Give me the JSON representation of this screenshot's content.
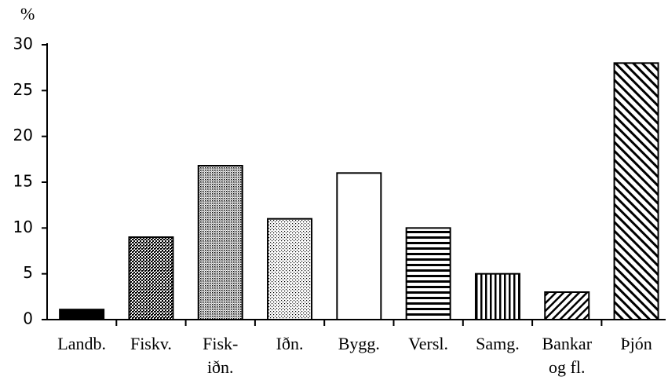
{
  "chart_data": {
    "type": "bar",
    "y_label": "%",
    "categories": [
      "Landb.",
      "Fiskv.",
      "Fisk-\niðn.",
      "Iðn.",
      "Bygg.",
      "Versl.",
      "Samg.",
      "Bankar\nog fl.",
      "Þjón"
    ],
    "values": [
      1.1,
      9,
      16.8,
      11,
      16,
      10,
      5,
      3,
      28
    ],
    "patterns": [
      "solid",
      "dense-dots",
      "medium-dots",
      "light-dots",
      "blank",
      "horizontal-stripes",
      "vertical-stripes",
      "back-diagonal",
      "forward-diagonal"
    ],
    "color": "#000000",
    "ylim": [
      0,
      30
    ],
    "yticks": [
      0,
      5,
      10,
      15,
      20,
      25,
      30
    ],
    "grid": false
  }
}
